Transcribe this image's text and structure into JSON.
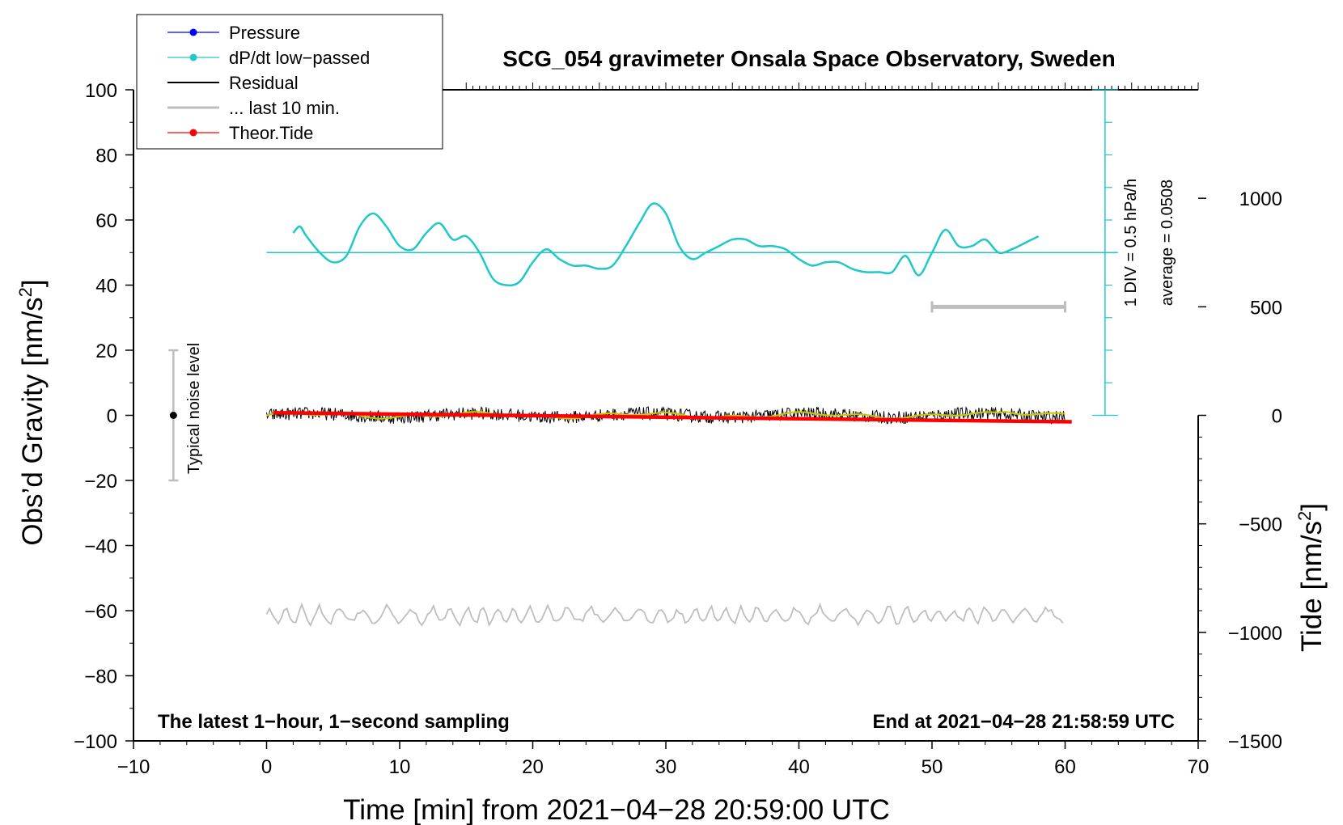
{
  "chart_data": {
    "type": "line",
    "title": "SCG_054 gravimeter Onsala Space Observatory, Sweden",
    "xlabel": "Time [min] from 2021−04−28 20:59:00 UTC",
    "ylabel_main": "Obs’d Gravity [nm/s",
    "ylabel_right": "Tide [nm/s",
    "ylabel_sup": "2",
    "ylabel_close": "]",
    "xlim": [
      -10,
      70
    ],
    "ylim": [
      -100,
      100
    ],
    "right_ylim": [
      -1500,
      1500
    ],
    "x_ticks": [
      -10,
      0,
      10,
      20,
      30,
      40,
      50,
      60,
      70
    ],
    "x_tick_labels": [
      "−10",
      "0",
      "10",
      "20",
      "30",
      "40",
      "50",
      "60",
      "70"
    ],
    "y_ticks": [
      -100,
      -80,
      -60,
      -40,
      -20,
      0,
      20,
      40,
      60,
      80,
      100
    ],
    "y_tick_labels": [
      "−100",
      "−80",
      "−60",
      "−40",
      "−20",
      "0",
      "20",
      "40",
      "60",
      "80",
      "100"
    ],
    "right_y_ticks": [
      -1500,
      -1000,
      -500,
      0,
      500,
      1000
    ],
    "right_y_tick_labels": [
      "−1500",
      "−1000",
      "−500",
      "0",
      "500",
      "1000"
    ],
    "grid": false,
    "legend": {
      "position": "top-left",
      "entries": [
        {
          "name": "Pressure",
          "color": "#0000ff",
          "marker": true
        },
        {
          "name": "dP/dt low−passed",
          "color": "#20c8c8",
          "marker": true
        },
        {
          "name": "Residual",
          "color": "#000000",
          "marker": false
        },
        {
          "name": "... last 10 min.",
          "color": "#bebebe",
          "marker": false
        },
        {
          "name": "Theor.Tide",
          "color": "#ff0000",
          "marker": true
        }
      ]
    },
    "dpdt_lowpassed": {
      "color": "#20c8c8",
      "baseline_y": 50,
      "x": [
        2,
        2.5,
        3,
        4,
        5,
        6,
        7,
        8,
        9,
        10,
        11,
        12,
        13,
        14,
        15,
        16,
        17,
        18,
        19,
        20,
        21,
        22,
        23,
        24,
        25,
        26,
        27,
        28,
        29,
        30,
        31,
        32,
        33,
        34,
        35,
        36,
        37,
        38,
        39,
        40,
        41,
        42,
        43,
        44,
        45,
        46,
        47,
        48,
        49,
        50,
        51,
        52,
        53,
        54,
        55,
        56,
        57,
        58
      ],
      "y": [
        56,
        58,
        55,
        50,
        47,
        49,
        58,
        62,
        58,
        52,
        51,
        56,
        59,
        54,
        55,
        50,
        42,
        40,
        41,
        47,
        51,
        48,
        46,
        46,
        45,
        46,
        52,
        59,
        65,
        62,
        52,
        48,
        50,
        52,
        54,
        54,
        52,
        52,
        51,
        48,
        46,
        47,
        47,
        45,
        44,
        44,
        44,
        49,
        43,
        50,
        57,
        52,
        52,
        54,
        50,
        51,
        53,
        55
      ]
    },
    "residual": {
      "color": "#000000",
      "smooth_color": "#c8c800",
      "x_range": [
        0,
        60
      ],
      "level": 0,
      "amplitude": 2
    },
    "last_10_min": {
      "color": "#bebebe",
      "x_range": [
        0,
        60
      ],
      "level": -61.5,
      "amplitude": 2,
      "bar_x": [
        50,
        60
      ],
      "bar_tide": 500
    },
    "theor_tide": {
      "color": "#ff0000",
      "axis": "right",
      "x": [
        0.5,
        60.5
      ],
      "tide": [
        12,
        -30
      ]
    },
    "typical_noise": {
      "label": "Typical noise level",
      "x": -7,
      "center": 0,
      "range": [
        -20,
        20
      ]
    },
    "pressure_scale": {
      "label1": "1 DIV = 0.5 hPa/h",
      "label2": "average = 0.0508",
      "x": 63,
      "range": [
        0,
        100
      ]
    },
    "annotations": {
      "bottom_left": "The latest 1−hour, 1−second sampling",
      "bottom_right": "End at 2021−04−28 21:58:59 UTC"
    }
  }
}
